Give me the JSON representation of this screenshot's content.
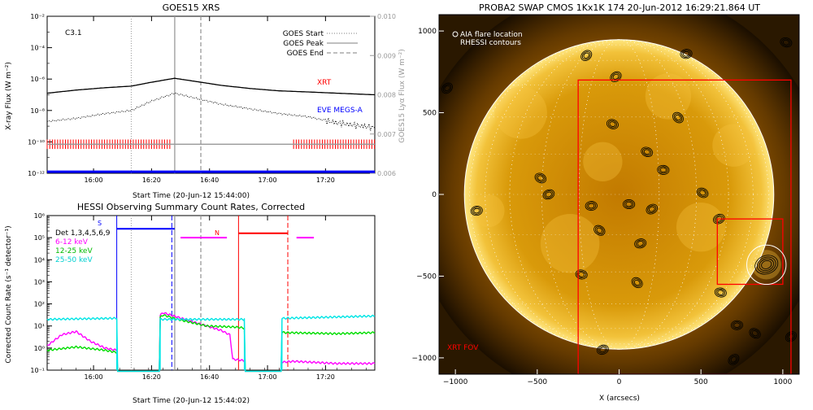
{
  "panels": {
    "goes": {
      "title": "GOES15 XRS",
      "class_label": "C3.1",
      "xlabel": "Start Time (20-Jun-12 15:44:00)",
      "ylabel_left": "X-ray Flux (W m⁻²)",
      "ylabel_right": "GOES15 Lyα Flux (W m⁻²)",
      "xt_label": "XRT",
      "eve_label": "EVE MEGS-A",
      "legend": [
        {
          "label": "GOES Start",
          "dash": "dotted"
        },
        {
          "label": "GOES Peak",
          "dash": "solid"
        },
        {
          "label": "GOES End",
          "dash": "dashed"
        }
      ]
    },
    "hessi": {
      "title": "HESSI Observing Summary Count Rates, Corrected",
      "xlabel": "Start Time (20-Jun-12 15:44:02)",
      "ylabel": "Corrected Count Rate (s⁻¹ detector⁻¹)",
      "legend": [
        {
          "label": "Det 1,3,4,5,6,9",
          "color": "#000000"
        },
        {
          "label": "6-12 keV",
          "color": "#ff00ff"
        },
        {
          "label": "12-25 keV",
          "color": "#00dd00"
        },
        {
          "label": "25-50 keV",
          "color": "#00e5e5"
        }
      ],
      "marker_s": "S",
      "marker_n": "N"
    },
    "swap": {
      "title": "PROBA2 SWAP CMOS 1Kx1K 174 20-Jun-2012 16:29:21.864 UT",
      "legend_aia": "AIA flare location",
      "legend_rhessi": "RHESSI contours",
      "xrt_fov": "XRT FOV",
      "xlabel": "X (arcsecs)"
    }
  },
  "chart_data": [
    {
      "type": "line",
      "id": "goes",
      "xlim": [
        0,
        113
      ],
      "x_ticks": [
        {
          "v": 16,
          "label": "16:00"
        },
        {
          "v": 36,
          "label": "16:20"
        },
        {
          "v": 56,
          "label": "16:40"
        },
        {
          "v": 76,
          "label": "17:00"
        },
        {
          "v": 96,
          "label": "17:20"
        }
      ],
      "yscale": "log",
      "ylim_exp": [
        -12,
        -2
      ],
      "y_ticks": [
        "10⁻¹²",
        "10⁻¹⁰",
        "10⁻⁸",
        "10⁻⁶",
        "10⁻⁴",
        "10⁻²"
      ],
      "y_tick_exp": [
        -12,
        -10,
        -8,
        -6,
        -4,
        -2
      ],
      "y2lim": [
        0.006,
        0.01
      ],
      "y2_ticks": [
        "0.006",
        "0.007",
        "0.008",
        "0.009",
        "0.010"
      ],
      "y2_tick_vals": [
        0.006,
        0.007,
        0.008,
        0.009,
        0.01
      ],
      "markers": {
        "start": 29,
        "peak": 44,
        "end": 53
      },
      "series": [
        {
          "name": "long",
          "color": "#000000",
          "exp": [
            [
              0,
              -6.9
            ],
            [
              10,
              -6.7
            ],
            [
              20,
              -6.55
            ],
            [
              29,
              -6.45
            ],
            [
              36,
              -6.2
            ],
            [
              44,
              -5.95
            ],
            [
              53,
              -6.2
            ],
            [
              60,
              -6.4
            ],
            [
              70,
              -6.6
            ],
            [
              80,
              -6.75
            ],
            [
              90,
              -6.82
            ],
            [
              100,
              -6.9
            ],
            [
              113,
              -7.0
            ]
          ]
        },
        {
          "name": "short",
          "color": "#000000",
          "dotted": true,
          "exp": [
            [
              0,
              -8.7
            ],
            [
              10,
              -8.5
            ],
            [
              20,
              -8.2
            ],
            [
              29,
              -8.0
            ],
            [
              36,
              -7.4
            ],
            [
              44,
              -6.9
            ],
            [
              53,
              -7.3
            ],
            [
              60,
              -7.6
            ],
            [
              70,
              -7.9
            ],
            [
              80,
              -8.2
            ],
            [
              90,
              -8.4
            ],
            [
              100,
              -8.8
            ],
            [
              113,
              -9.1
            ]
          ]
        },
        {
          "name": "lyman",
          "color": "#999999",
          "exp": [
            [
              0,
              -10.15
            ],
            [
              113,
              -10.15
            ]
          ]
        },
        {
          "name": "eve",
          "color": "#0000ff",
          "exp": [
            [
              0,
              -11.9
            ],
            [
              113,
              -11.9
            ]
          ]
        }
      ],
      "xrt_coverage": [
        [
          0,
          43
        ],
        [
          85,
          113
        ]
      ]
    },
    {
      "type": "line",
      "id": "hessi",
      "xlim": [
        0,
        113
      ],
      "x_ticks": [
        {
          "v": 16,
          "label": "16:00"
        },
        {
          "v": 36,
          "label": "16:20"
        },
        {
          "v": 56,
          "label": "16:40"
        },
        {
          "v": 76,
          "label": "17:00"
        },
        {
          "v": 96,
          "label": "17:20"
        }
      ],
      "yscale": "log",
      "ylim_exp": [
        -1,
        6
      ],
      "y_ticks": [
        "10⁻¹",
        "10⁰",
        "10¹",
        "10²",
        "10³",
        "10⁴",
        "10⁵",
        "10⁶"
      ],
      "y_tick_exp": [
        -1,
        0,
        1,
        2,
        3,
        4,
        5,
        6
      ],
      "series": [
        {
          "name": "6-12 keV",
          "color": "#ff00ff",
          "exp": [
            [
              0,
              0.1
            ],
            [
              5,
              0.6
            ],
            [
              10,
              0.75
            ],
            [
              15,
              0.3
            ],
            [
              20,
              0.0
            ],
            [
              24,
              -0.1
            ],
            [
              40,
              1.6
            ],
            [
              45,
              1.4
            ],
            [
              50,
              1.2
            ],
            [
              55,
              1.0
            ],
            [
              60,
              0.8
            ],
            [
              63,
              0.6
            ],
            [
              64,
              -0.5
            ],
            [
              75,
              -0.7
            ],
            [
              85,
              -0.6
            ],
            [
              100,
              -0.7
            ],
            [
              113,
              -0.7
            ]
          ]
        },
        {
          "name": "12-25 keV",
          "color": "#00dd00",
          "exp": [
            [
              0,
              -0.1
            ],
            [
              10,
              0.05
            ],
            [
              20,
              -0.1
            ],
            [
              24,
              -0.2
            ],
            [
              40,
              1.5
            ],
            [
              45,
              1.3
            ],
            [
              55,
              1.0
            ],
            [
              65,
              0.95
            ],
            [
              69,
              0.9
            ],
            [
              82,
              0.7
            ],
            [
              100,
              0.65
            ],
            [
              113,
              0.7
            ]
          ]
        },
        {
          "name": "25-50 keV",
          "color": "#00e5e5",
          "exp": [
            [
              0,
              1.3
            ],
            [
              24,
              1.35
            ],
            [
              40,
              1.3
            ],
            [
              70,
              1.3
            ],
            [
              82,
              1.35
            ],
            [
              113,
              1.45
            ]
          ]
        }
      ],
      "markers": {
        "start": 29,
        "peak": 44,
        "end": 53
      },
      "night": [
        [
          24,
          39
        ],
        [
          68,
          81
        ]
      ],
      "flags": [
        {
          "x0": 24,
          "x1": 44,
          "exp": 5.4,
          "color": "#0000ff"
        },
        {
          "x0": 46,
          "x1": 62,
          "exp": 5.0,
          "color": "#ff00ff"
        },
        {
          "x0": 66,
          "x1": 83,
          "exp": 5.2,
          "color": "#ff0000"
        },
        {
          "x0": 86,
          "x1": 92,
          "exp": 5.0,
          "color": "#ff00ff"
        }
      ],
      "saa_lines": [
        {
          "x": 24,
          "color": "#0000ff",
          "style": "solid"
        },
        {
          "x": 43,
          "color": "#0000ff",
          "style": "dashed"
        },
        {
          "x": 66,
          "color": "#ff0000",
          "style": "solid"
        },
        {
          "x": 83,
          "color": "#ff0000",
          "style": "dashed"
        }
      ]
    },
    {
      "type": "scatter",
      "id": "swap",
      "xlim": [
        -1100,
        1100
      ],
      "ylim": [
        -1100,
        1100
      ],
      "x_ticks": [
        -1000,
        -500,
        0,
        500,
        1000
      ],
      "y_ticks": [
        -1000,
        -500,
        0,
        500,
        1000
      ],
      "sun_radius": 945,
      "xrt_fov": [
        -250,
        -1100,
        1050,
        700
      ],
      "flare_box": [
        600,
        -550,
        1000,
        -150
      ],
      "flare_circle": [
        900,
        -430,
        120
      ],
      "contours": [
        [
          -1050,
          650
        ],
        [
          -870,
          -100
        ],
        [
          -480,
          100
        ],
        [
          -430,
          0
        ],
        [
          -230,
          -490
        ],
        [
          -200,
          850
        ],
        [
          -170,
          -70
        ],
        [
          -120,
          -220
        ],
        [
          -100,
          -950
        ],
        [
          -40,
          430
        ],
        [
          -20,
          720
        ],
        [
          60,
          -60
        ],
        [
          110,
          -540
        ],
        [
          130,
          -300
        ],
        [
          170,
          260
        ],
        [
          200,
          -90
        ],
        [
          270,
          150
        ],
        [
          360,
          470
        ],
        [
          410,
          860
        ],
        [
          510,
          10
        ],
        [
          610,
          -150
        ],
        [
          620,
          -600
        ],
        [
          700,
          -1010
        ],
        [
          720,
          -800
        ],
        [
          830,
          -850
        ],
        [
          900,
          -430
        ],
        [
          1020,
          930
        ],
        [
          1050,
          -870
        ]
      ]
    }
  ]
}
